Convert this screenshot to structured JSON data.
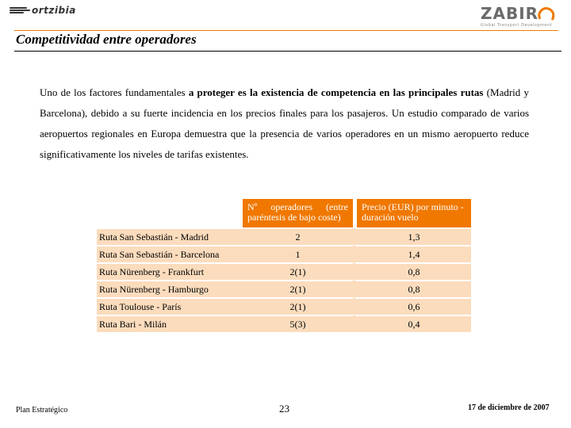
{
  "header": {
    "left_logo_text": "ortzibia",
    "right_logo_text": "ZABIR",
    "right_logo_tagline": "Global Transport Development"
  },
  "title": "Competitividad entre operadores",
  "body": {
    "part1": "Uno de los factores fundamentales ",
    "part2_bold": "a proteger es la existencia de competencia en las principales rutas",
    "part3": " (Madrid y Barcelona), debido a su fuerte incidencia en los precios finales para los pasajeros. Un estudio comparado de varios aeropuertos regionales en Europa demuestra que la presencia de varios operadores en un mismo aeropuerto reduce significativamente los niveles de tarifas existentes."
  },
  "table": {
    "headers": [
      "Nº operadores (entre paréntesis de bajo coste)",
      "Precio (EUR) por minuto - duración vuelo"
    ],
    "rows": [
      {
        "route": "Ruta San Sebastián - Madrid",
        "operators": "2",
        "price": "1,3"
      },
      {
        "route": "Ruta San Sebastián - Barcelona",
        "operators": "1",
        "price": "1,4"
      },
      {
        "route": "Ruta Nürenberg - Frankfurt",
        "operators": "2(1)",
        "price": "0,8"
      },
      {
        "route": "Ruta Nürenberg - Hamburgo",
        "operators": "2(1)",
        "price": "0,8"
      },
      {
        "route": "Ruta Toulouse - París",
        "operators": "2(1)",
        "price": "0,6"
      },
      {
        "route": "Ruta Bari - Milán",
        "operators": "5(3)",
        "price": "0,4"
      }
    ]
  },
  "footer": {
    "left": "Plan Estratégico",
    "page": "23",
    "date": "17 de diciembre de 2007"
  },
  "colors": {
    "accent": "#f07800",
    "row_fill": "#fbdcbd"
  }
}
